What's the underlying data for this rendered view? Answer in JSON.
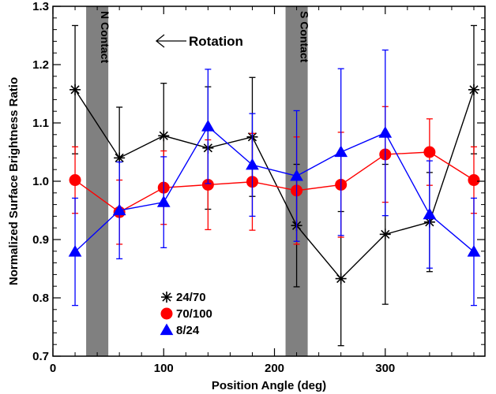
{
  "chart_data": {
    "type": "line",
    "xlabel": "Position Angle (deg)",
    "ylabel": "Normalized Surface Brightness Ratio",
    "xlim": [
      0,
      390
    ],
    "ylim": [
      0.7,
      1.3
    ],
    "x_ticks": [
      0,
      100,
      200,
      300
    ],
    "y_ticks": [
      0.7,
      0.8,
      0.9,
      1.0,
      1.1,
      1.2,
      1.3
    ],
    "x": [
      20,
      60,
      100,
      140,
      180,
      220,
      260,
      300,
      340,
      380
    ],
    "series": [
      {
        "name": "24/70",
        "color": "#000000",
        "marker": "asterisk",
        "values": [
          1.157,
          1.04,
          1.078,
          1.057,
          1.076,
          0.924,
          0.833,
          0.909,
          0.93,
          1.157
        ],
        "err": [
          0.11,
          0.087,
          0.09,
          0.105,
          0.102,
          0.105,
          0.115,
          0.12,
          0.085,
          0.11
        ]
      },
      {
        "name": "70/100",
        "color": "#ff0000",
        "marker": "circle",
        "values": [
          1.002,
          0.947,
          0.989,
          0.994,
          0.999,
          0.984,
          0.994,
          1.046,
          1.05,
          1.002
        ],
        "err": [
          0.057,
          0.055,
          0.063,
          0.077,
          0.083,
          0.092,
          0.09,
          0.082,
          0.057,
          0.057
        ]
      },
      {
        "name": "8/24",
        "color": "#0000ff",
        "marker": "triangle",
        "values": [
          0.879,
          0.95,
          0.964,
          1.094,
          1.028,
          1.009,
          1.05,
          1.083,
          0.943,
          0.879
        ],
        "err": [
          0.092,
          0.083,
          0.078,
          0.098,
          0.088,
          0.112,
          0.143,
          0.142,
          0.092,
          0.092
        ]
      }
    ],
    "bands": [
      {
        "label": "N Contact",
        "x_range": [
          30,
          50
        ]
      },
      {
        "label": "S Contact",
        "x_range": [
          210,
          230
        ]
      }
    ],
    "annotation": "Rotation",
    "legend_position": "bottom-left",
    "grid": false
  }
}
